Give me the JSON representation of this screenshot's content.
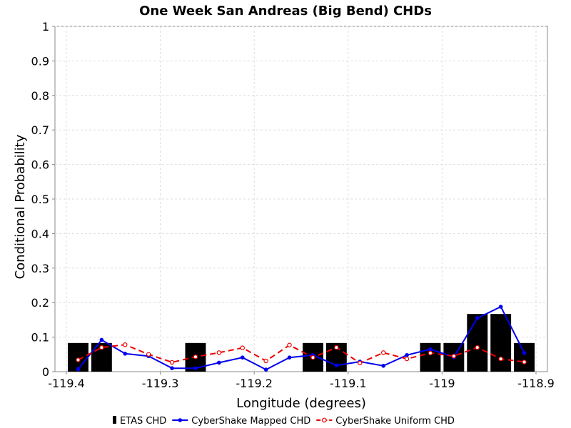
{
  "chart_data": {
    "type": "bar",
    "title": "One Week San Andreas (Big Bend) CHDs",
    "xlabel": "Longitude (degrees)",
    "ylabel": "Conditional Probability",
    "xlim": [
      -119.4,
      -118.9
    ],
    "ylim": [
      0,
      1
    ],
    "x_ticks": [
      -119.4,
      -119.3,
      -119.2,
      -119.1,
      -119.0,
      -118.9
    ],
    "x_tick_labels": [
      "-119.4",
      "-119.3",
      "-119.2",
      "-119.1",
      "-119",
      "-118.9"
    ],
    "y_ticks": [
      0,
      0.1,
      0.2,
      0.3,
      0.4,
      0.5,
      0.6,
      0.7,
      0.8,
      0.9,
      1
    ],
    "y_tick_labels": [
      "0",
      "0.1",
      "0.2",
      "0.3",
      "0.4",
      "0.5",
      "0.6",
      "0.7",
      "0.8",
      "0.9",
      "1"
    ],
    "grid": true,
    "legend_position": "bottom",
    "bars": {
      "name": "ETAS CHD",
      "color": "#000000",
      "bin_width": 0.025,
      "x": [
        -119.3875,
        -119.3625,
        -119.2625,
        -119.1375,
        -119.1125,
        -119.0125,
        -118.9875,
        -118.9625,
        -118.9375,
        -118.9125
      ],
      "values": [
        0.083,
        0.083,
        0.083,
        0.083,
        0.083,
        0.083,
        0.083,
        0.167,
        0.167,
        0.083
      ]
    },
    "series": [
      {
        "name": "CyberShake Mapped CHD",
        "color": "#0000ee",
        "style": "solid",
        "marker": "filled-circle",
        "x": [
          -119.3875,
          -119.3625,
          -119.3375,
          -119.3125,
          -119.2875,
          -119.2625,
          -119.2375,
          -119.2125,
          -119.1875,
          -119.1625,
          -119.1375,
          -119.1125,
          -119.0875,
          -119.0625,
          -119.0375,
          -119.0125,
          -118.9875,
          -118.9625,
          -118.9375,
          -118.9125
        ],
        "values": [
          0.007,
          0.092,
          0.052,
          0.045,
          0.01,
          0.01,
          0.026,
          0.041,
          0.006,
          0.041,
          0.048,
          0.018,
          0.029,
          0.017,
          0.048,
          0.065,
          0.042,
          0.155,
          0.188,
          0.054
        ]
      },
      {
        "name": "CyberShake Uniform CHD",
        "color": "#ee0000",
        "style": "dashed",
        "marker": "open-circle",
        "x": [
          -119.3875,
          -119.3625,
          -119.3375,
          -119.3125,
          -119.2875,
          -119.2625,
          -119.2375,
          -119.2125,
          -119.1875,
          -119.1625,
          -119.1375,
          -119.1125,
          -119.0875,
          -119.0625,
          -119.0375,
          -119.0125,
          -118.9875,
          -118.9625,
          -118.9375,
          -118.9125
        ],
        "values": [
          0.034,
          0.07,
          0.078,
          0.05,
          0.027,
          0.043,
          0.055,
          0.069,
          0.031,
          0.077,
          0.041,
          0.07,
          0.025,
          0.055,
          0.037,
          0.054,
          0.045,
          0.07,
          0.037,
          0.028
        ]
      }
    ]
  }
}
